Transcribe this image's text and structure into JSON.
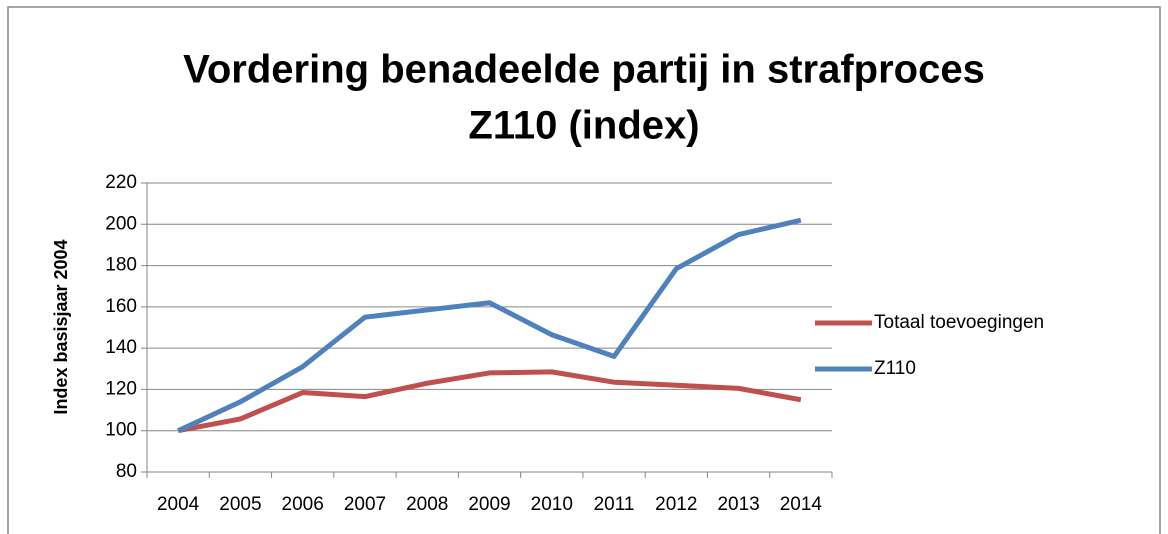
{
  "chart_data": {
    "type": "line",
    "title": [
      "Vordering benadeelde partij in strafproces",
      "Z110 (index)"
    ],
    "y_label": "Index basisjaar 2004",
    "categories": [
      "2004",
      "2005",
      "2006",
      "2007",
      "2008",
      "2009",
      "2010",
      "2011",
      "2012",
      "2013",
      "2014"
    ],
    "series": [
      {
        "name": "Totaal toevoegingen",
        "color": "#c0504d",
        "values": [
          100,
          105.7,
          118.5,
          116.5,
          123,
          128,
          128.5,
          123.5,
          122,
          120.5,
          115
        ]
      },
      {
        "name": "Z110",
        "color": "#4f81bd",
        "values": [
          100,
          114,
          131,
          155,
          158.5,
          162,
          146.5,
          136,
          178.5,
          195,
          202
        ]
      }
    ],
    "ylim": [
      80,
      220
    ],
    "yticks": [
      80,
      100,
      120,
      140,
      160,
      180,
      200,
      220
    ],
    "grid": true,
    "legend": "right"
  }
}
